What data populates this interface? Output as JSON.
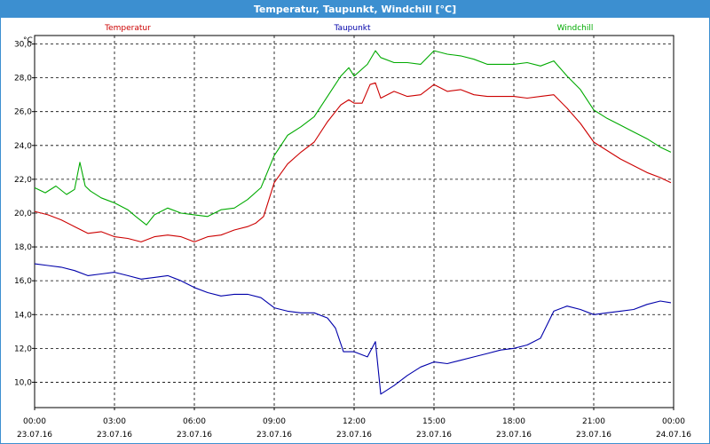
{
  "window": {
    "title": "Temperatur, Taupunkt, Windchill [°C]"
  },
  "chart_data": {
    "type": "line",
    "title": "Temperatur, Taupunkt, Windchill [°C]",
    "ylabel": "°C",
    "xlabel": "",
    "ylim": [
      8.5,
      30.5
    ],
    "xlim": [
      0,
      24
    ],
    "grid": true,
    "legend_position": "top",
    "y_ticks": [
      "10,0",
      "12,0",
      "14,0",
      "16,0",
      "18,0",
      "20,0",
      "22,0",
      "24,0",
      "26,0",
      "28,0",
      "30,0"
    ],
    "x_ticks": [
      {
        "time": "00:00",
        "date": "23.07.16"
      },
      {
        "time": "03:00",
        "date": "23.07.16"
      },
      {
        "time": "06:00",
        "date": "23.07.16"
      },
      {
        "time": "09:00",
        "date": "23.07.16"
      },
      {
        "time": "12:00",
        "date": "23.07.16"
      },
      {
        "time": "15:00",
        "date": "23.07.16"
      },
      {
        "time": "18:00",
        "date": "23.07.16"
      },
      {
        "time": "21:00",
        "date": "23.07.16"
      },
      {
        "time": "00:00",
        "date": "24.07.16"
      }
    ],
    "series": [
      {
        "name": "Temperatur",
        "color": "#cc0000",
        "points": [
          [
            0,
            20.1
          ],
          [
            0.5,
            19.9
          ],
          [
            1,
            19.6
          ],
          [
            1.5,
            19.2
          ],
          [
            2,
            18.8
          ],
          [
            2.5,
            18.9
          ],
          [
            3,
            18.6
          ],
          [
            3.5,
            18.5
          ],
          [
            4,
            18.3
          ],
          [
            4.5,
            18.6
          ],
          [
            5,
            18.7
          ],
          [
            5.5,
            18.6
          ],
          [
            6,
            18.3
          ],
          [
            6.5,
            18.6
          ],
          [
            7,
            18.7
          ],
          [
            7.5,
            19.0
          ],
          [
            8,
            19.2
          ],
          [
            8.3,
            19.4
          ],
          [
            8.6,
            19.8
          ],
          [
            9,
            21.8
          ],
          [
            9.5,
            22.9
          ],
          [
            10,
            23.6
          ],
          [
            10.5,
            24.2
          ],
          [
            11,
            25.4
          ],
          [
            11.5,
            26.4
          ],
          [
            11.8,
            26.7
          ],
          [
            12,
            26.5
          ],
          [
            12.3,
            26.5
          ],
          [
            12.6,
            27.6
          ],
          [
            12.8,
            27.7
          ],
          [
            13,
            26.8
          ],
          [
            13.5,
            27.2
          ],
          [
            14,
            26.9
          ],
          [
            14.5,
            27.0
          ],
          [
            15,
            27.6
          ],
          [
            15.5,
            27.2
          ],
          [
            16,
            27.3
          ],
          [
            16.5,
            27.0
          ],
          [
            17,
            26.9
          ],
          [
            17.5,
            26.9
          ],
          [
            18,
            26.9
          ],
          [
            18.5,
            26.8
          ],
          [
            19,
            26.9
          ],
          [
            19.5,
            27.0
          ],
          [
            20,
            26.2
          ],
          [
            20.5,
            25.3
          ],
          [
            21,
            24.2
          ],
          [
            21.5,
            23.7
          ],
          [
            22,
            23.2
          ],
          [
            22.5,
            22.8
          ],
          [
            23,
            22.4
          ],
          [
            23.5,
            22.1
          ],
          [
            23.9,
            21.8
          ]
        ]
      },
      {
        "name": "Taupunkt",
        "color": "#0000aa",
        "points": [
          [
            0,
            17.0
          ],
          [
            0.5,
            16.9
          ],
          [
            1,
            16.8
          ],
          [
            1.5,
            16.6
          ],
          [
            2,
            16.3
          ],
          [
            2.5,
            16.4
          ],
          [
            3,
            16.5
          ],
          [
            3.5,
            16.3
          ],
          [
            4,
            16.1
          ],
          [
            4.5,
            16.2
          ],
          [
            5,
            16.3
          ],
          [
            5.5,
            16.0
          ],
          [
            6,
            15.6
          ],
          [
            6.5,
            15.3
          ],
          [
            7,
            15.1
          ],
          [
            7.5,
            15.2
          ],
          [
            8,
            15.2
          ],
          [
            8.5,
            15.0
          ],
          [
            9,
            14.4
          ],
          [
            9.5,
            14.2
          ],
          [
            10,
            14.1
          ],
          [
            10.5,
            14.1
          ],
          [
            11,
            13.8
          ],
          [
            11.3,
            13.2
          ],
          [
            11.6,
            11.8
          ],
          [
            12,
            11.8
          ],
          [
            12.5,
            11.5
          ],
          [
            12.8,
            12.4
          ],
          [
            13,
            9.3
          ],
          [
            13.5,
            9.8
          ],
          [
            14,
            10.4
          ],
          [
            14.5,
            10.9
          ],
          [
            15,
            11.2
          ],
          [
            15.5,
            11.1
          ],
          [
            16,
            11.3
          ],
          [
            16.5,
            11.5
          ],
          [
            17,
            11.7
          ],
          [
            17.5,
            11.9
          ],
          [
            18,
            12.0
          ],
          [
            18.5,
            12.2
          ],
          [
            19,
            12.6
          ],
          [
            19.5,
            14.2
          ],
          [
            20,
            14.5
          ],
          [
            20.5,
            14.3
          ],
          [
            21,
            14.0
          ],
          [
            21.5,
            14.1
          ],
          [
            22,
            14.2
          ],
          [
            22.5,
            14.3
          ],
          [
            23,
            14.6
          ],
          [
            23.5,
            14.8
          ],
          [
            23.9,
            14.7
          ]
        ]
      },
      {
        "name": "Windchill",
        "color": "#00aa00",
        "points": [
          [
            0,
            21.5
          ],
          [
            0.4,
            21.2
          ],
          [
            0.8,
            21.6
          ],
          [
            1.2,
            21.1
          ],
          [
            1.5,
            21.4
          ],
          [
            1.7,
            23.0
          ],
          [
            1.9,
            21.6
          ],
          [
            2.1,
            21.3
          ],
          [
            2.5,
            20.9
          ],
          [
            3,
            20.6
          ],
          [
            3.5,
            20.2
          ],
          [
            3.8,
            19.8
          ],
          [
            4.2,
            19.3
          ],
          [
            4.5,
            19.9
          ],
          [
            5,
            20.3
          ],
          [
            5.5,
            20.0
          ],
          [
            6,
            19.9
          ],
          [
            6.5,
            19.8
          ],
          [
            7,
            20.2
          ],
          [
            7.5,
            20.3
          ],
          [
            8,
            20.8
          ],
          [
            8.5,
            21.5
          ],
          [
            9,
            23.4
          ],
          [
            9.5,
            24.6
          ],
          [
            10,
            25.1
          ],
          [
            10.5,
            25.7
          ],
          [
            11,
            26.9
          ],
          [
            11.5,
            28.1
          ],
          [
            11.8,
            28.6
          ],
          [
            12,
            28.1
          ],
          [
            12.5,
            28.8
          ],
          [
            12.8,
            29.6
          ],
          [
            13,
            29.2
          ],
          [
            13.5,
            28.9
          ],
          [
            14,
            28.9
          ],
          [
            14.5,
            28.8
          ],
          [
            15,
            29.6
          ],
          [
            15.5,
            29.4
          ],
          [
            16,
            29.3
          ],
          [
            16.5,
            29.1
          ],
          [
            17,
            28.8
          ],
          [
            17.5,
            28.8
          ],
          [
            18,
            28.8
          ],
          [
            18.5,
            28.9
          ],
          [
            19,
            28.7
          ],
          [
            19.5,
            29.0
          ],
          [
            20,
            28.1
          ],
          [
            20.5,
            27.3
          ],
          [
            21,
            26.1
          ],
          [
            21.5,
            25.6
          ],
          [
            22,
            25.2
          ],
          [
            22.5,
            24.8
          ],
          [
            23,
            24.4
          ],
          [
            23.5,
            23.9
          ],
          [
            23.9,
            23.6
          ]
        ]
      }
    ]
  }
}
